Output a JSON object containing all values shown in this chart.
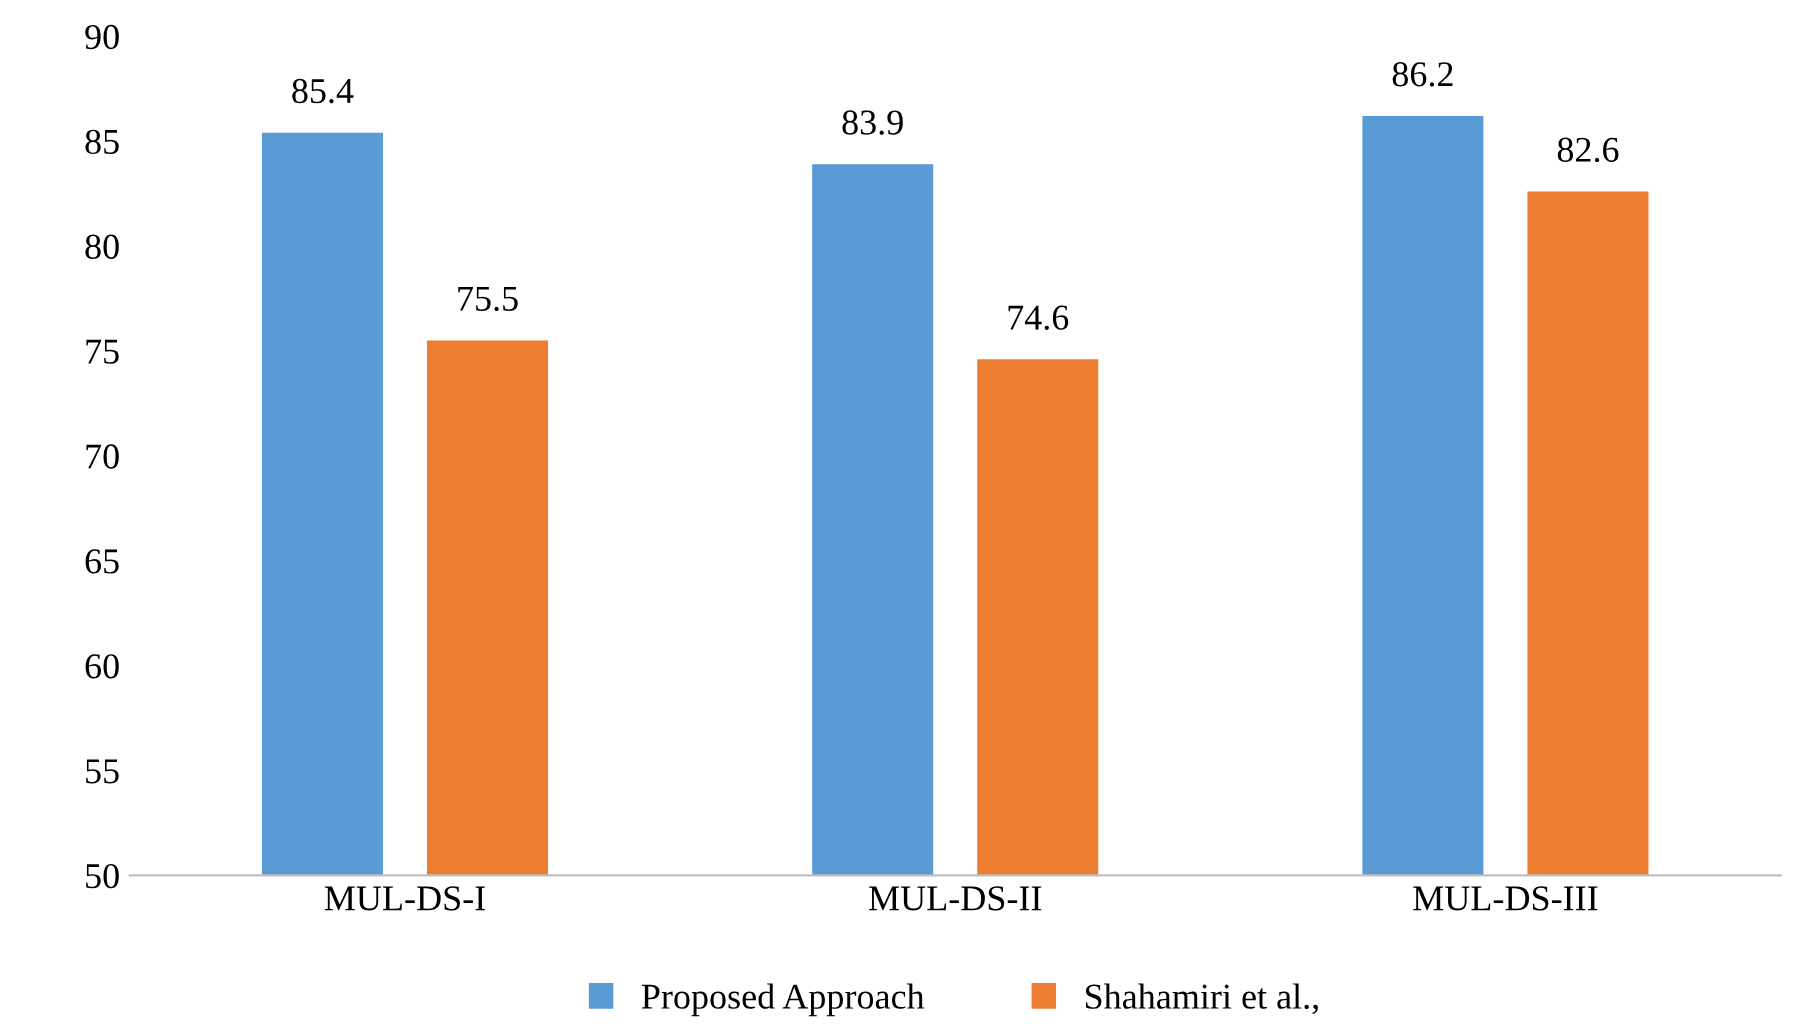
{
  "chart_data": {
    "type": "bar",
    "categories": [
      "MUL-DS-I",
      "MUL-DS-II",
      "MUL-DS-III"
    ],
    "series": [
      {
        "name": "Proposed Approach",
        "color": "#5b9bd5",
        "values": [
          85.4,
          83.9,
          86.2
        ]
      },
      {
        "name": "Shahamiri et al.,",
        "color": "#ed7d31",
        "values": [
          75.5,
          74.6,
          82.6
        ]
      }
    ],
    "ylim": [
      50,
      90
    ],
    "yticks": [
      50,
      55,
      60,
      65,
      70,
      75,
      80,
      85,
      90
    ],
    "data_labels": true,
    "legend": "bottom"
  }
}
